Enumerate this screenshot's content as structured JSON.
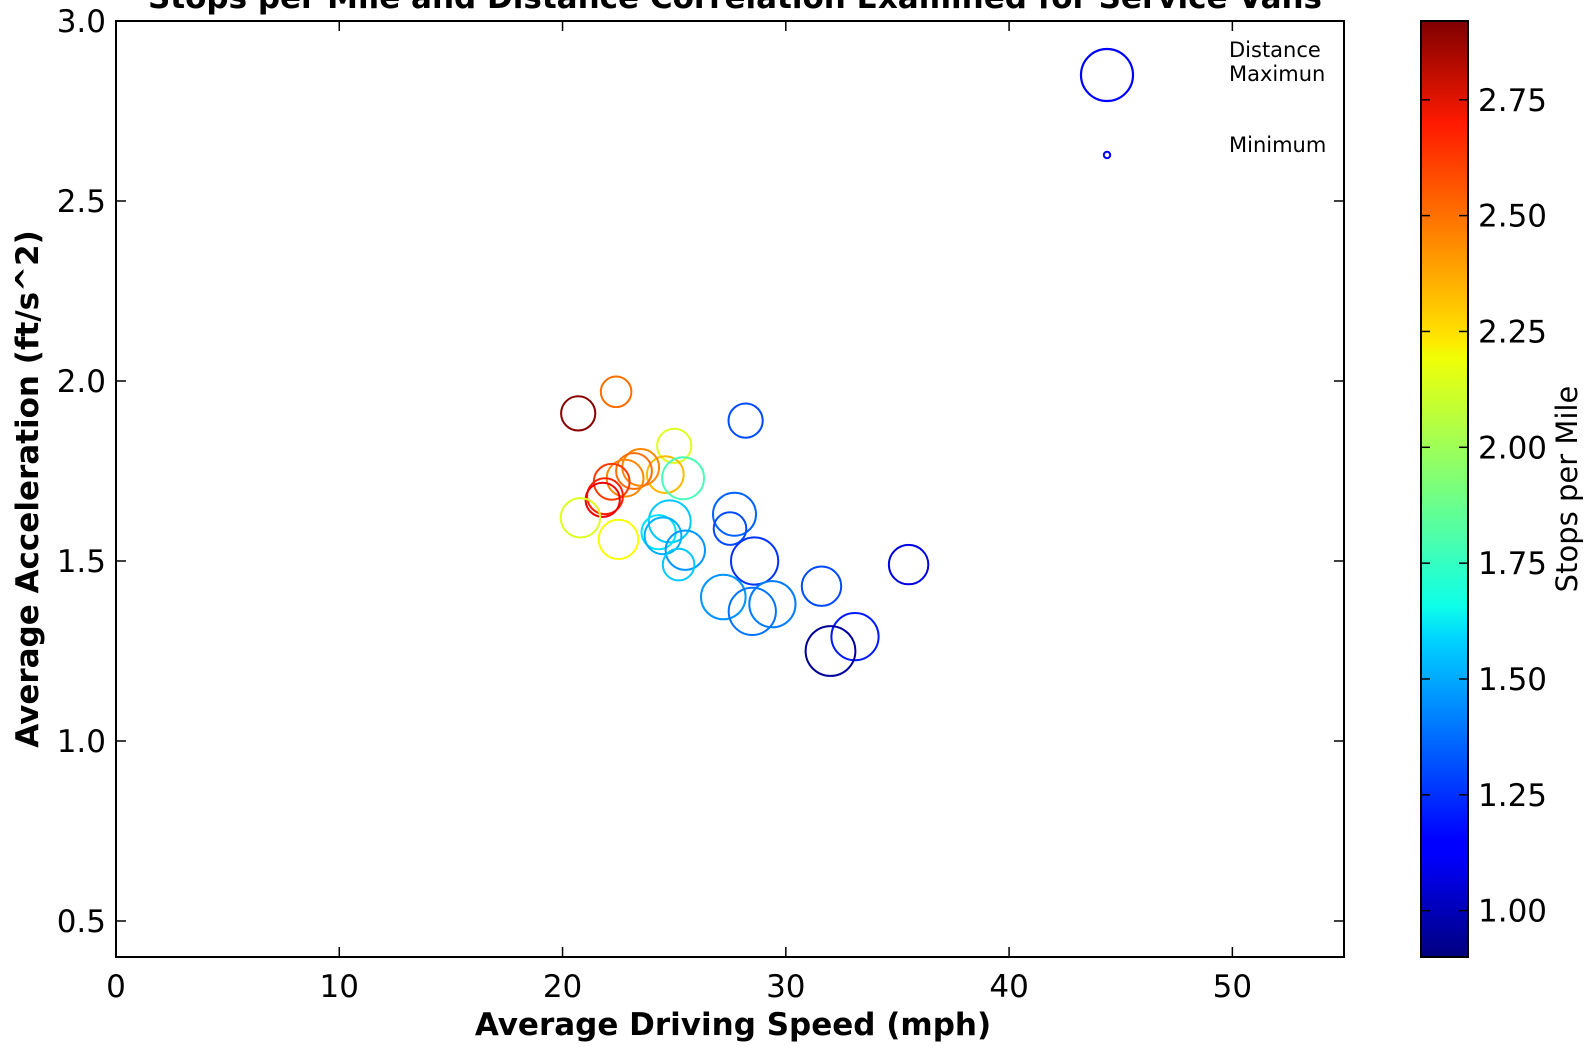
{
  "chart_data": {
    "type": "scatter",
    "title": "Stops per Mile and Distance Correlation Examined for Service Vans",
    "xlabel": "Average Driving Speed (mph)",
    "ylabel": "Average Acceleration (ft/s^2)",
    "xlim": [
      0,
      55
    ],
    "ylim": [
      0.4,
      3.0
    ],
    "xticks": [
      0,
      10,
      20,
      30,
      40,
      50
    ],
    "yticks": [
      0.5,
      1.0,
      1.5,
      2.0,
      2.5,
      3.0
    ],
    "xtick_labels": [
      "0",
      "10",
      "20",
      "30",
      "40",
      "50"
    ],
    "ytick_labels": [
      "0.5",
      "1.0",
      "1.5",
      "2.0",
      "2.5",
      "3.0"
    ],
    "grid": false,
    "marker": "hollow-circle",
    "size_encoding": "Distance",
    "color_encoding": "Stops per Mile",
    "colormap": "jet",
    "colorbar": {
      "label": "Stops per Mile",
      "range": [
        0.9,
        2.92
      ],
      "ticks": [
        1.0,
        1.25,
        1.5,
        1.75,
        2.0,
        2.25,
        2.5,
        2.75
      ],
      "tick_labels": [
        "1.00",
        "1.25",
        "1.50",
        "1.75",
        "2.00",
        "2.25",
        "2.50",
        "2.75"
      ]
    },
    "size_legend": {
      "title_line1": "Distance",
      "max_label": "Maximun",
      "min_label": "Minimum",
      "placement": "top-right"
    },
    "points": [
      {
        "x": 20.7,
        "y": 1.91,
        "stops": 2.9,
        "size": 0.35
      },
      {
        "x": 22.4,
        "y": 1.97,
        "stops": 2.45,
        "size": 0.28
      },
      {
        "x": 25.0,
        "y": 1.82,
        "stops": 2.1,
        "size": 0.35
      },
      {
        "x": 28.2,
        "y": 1.89,
        "stops": 1.3,
        "size": 0.35
      },
      {
        "x": 24.6,
        "y": 1.74,
        "stops": 2.3,
        "size": 0.4
      },
      {
        "x": 25.4,
        "y": 1.73,
        "stops": 1.8,
        "size": 0.5
      },
      {
        "x": 23.5,
        "y": 1.76,
        "stops": 2.4,
        "size": 0.4
      },
      {
        "x": 23.2,
        "y": 1.75,
        "stops": 2.45,
        "size": 0.38
      },
      {
        "x": 22.8,
        "y": 1.73,
        "stops": 2.4,
        "size": 0.4
      },
      {
        "x": 22.2,
        "y": 1.72,
        "stops": 2.55,
        "size": 0.38
      },
      {
        "x": 21.9,
        "y": 1.68,
        "stops": 2.6,
        "size": 0.38
      },
      {
        "x": 21.8,
        "y": 1.67,
        "stops": 2.7,
        "size": 0.35
      },
      {
        "x": 20.8,
        "y": 1.62,
        "stops": 2.1,
        "size": 0.45
      },
      {
        "x": 22.5,
        "y": 1.56,
        "stops": 2.15,
        "size": 0.45
      },
      {
        "x": 24.8,
        "y": 1.61,
        "stops": 1.55,
        "size": 0.5
      },
      {
        "x": 24.3,
        "y": 1.58,
        "stops": 1.6,
        "size": 0.35
      },
      {
        "x": 24.5,
        "y": 1.57,
        "stops": 1.5,
        "size": 0.4
      },
      {
        "x": 25.5,
        "y": 1.53,
        "stops": 1.45,
        "size": 0.45
      },
      {
        "x": 25.2,
        "y": 1.49,
        "stops": 1.55,
        "size": 0.3
      },
      {
        "x": 27.7,
        "y": 1.63,
        "stops": 1.35,
        "size": 0.52
      },
      {
        "x": 27.5,
        "y": 1.59,
        "stops": 1.3,
        "size": 0.32
      },
      {
        "x": 28.6,
        "y": 1.5,
        "stops": 1.25,
        "size": 0.6
      },
      {
        "x": 35.5,
        "y": 1.49,
        "stops": 1.1,
        "size": 0.45
      },
      {
        "x": 31.6,
        "y": 1.43,
        "stops": 1.3,
        "size": 0.45
      },
      {
        "x": 27.2,
        "y": 1.4,
        "stops": 1.45,
        "size": 0.55
      },
      {
        "x": 29.4,
        "y": 1.38,
        "stops": 1.4,
        "size": 0.58
      },
      {
        "x": 28.5,
        "y": 1.36,
        "stops": 1.38,
        "size": 0.6
      },
      {
        "x": 33.1,
        "y": 1.29,
        "stops": 1.2,
        "size": 0.6
      },
      {
        "x": 32.0,
        "y": 1.25,
        "stops": 0.95,
        "size": 0.65
      }
    ]
  }
}
